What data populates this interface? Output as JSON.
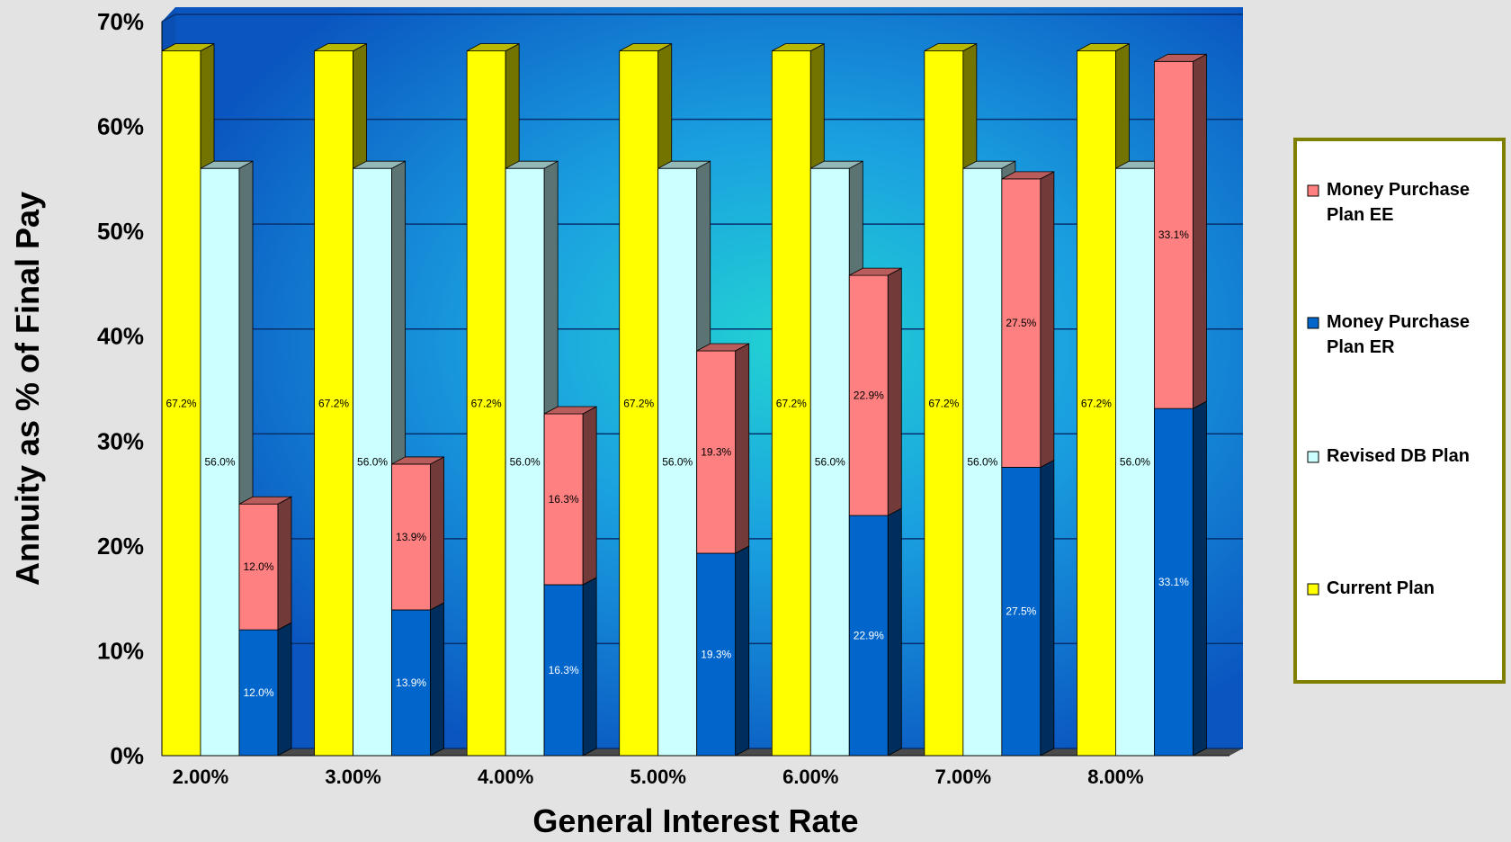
{
  "chart_data": {
    "type": "bar",
    "style": "3d-grouped-stacked",
    "title": "",
    "xlabel": "General Interest Rate",
    "ylabel": "Annuity as % of Final Pay",
    "ylim": [
      0,
      70
    ],
    "yticks": [
      "0%",
      "10%",
      "20%",
      "30%",
      "40%",
      "50%",
      "60%",
      "70%"
    ],
    "categories": [
      "2.00%",
      "3.00%",
      "4.00%",
      "5.00%",
      "6.00%",
      "7.00%",
      "8.00%"
    ],
    "grid": true,
    "legend_position": "right",
    "series": [
      {
        "name": "Current Plan",
        "color": "#ffff00",
        "stack": "current",
        "values": [
          67.2,
          67.2,
          67.2,
          67.2,
          67.2,
          67.2,
          67.2
        ],
        "labels": [
          "67.2%",
          "67.2%",
          "67.2%",
          "67.2%",
          "67.2%",
          "67.2%",
          "67.2%"
        ]
      },
      {
        "name": "Revised DB Plan",
        "color": "#ccffff",
        "stack": "revised",
        "values": [
          56.0,
          56.0,
          56.0,
          56.0,
          56.0,
          56.0,
          56.0
        ],
        "labels": [
          "56.0%",
          "56.0%",
          "56.0%",
          "56.0%",
          "56.0%",
          "56.0%",
          "56.0%"
        ]
      },
      {
        "name": "Money Purchase Plan ER",
        "color": "#0066cc",
        "stack": "money",
        "values": [
          12.0,
          13.9,
          16.3,
          19.3,
          22.9,
          27.5,
          33.1
        ],
        "labels": [
          "12.0%",
          "13.9%",
          "16.3%",
          "19.3%",
          "22.9%",
          "27.5%",
          "33.1%"
        ]
      },
      {
        "name": "Money Purchase Plan EE",
        "color": "#ff8080",
        "stack": "money",
        "values": [
          12.0,
          13.9,
          16.3,
          19.3,
          22.9,
          27.5,
          33.1
        ],
        "labels": [
          "12.0%",
          "13.9%",
          "16.3%",
          "19.3%",
          "22.9%",
          "27.5%",
          "33.1%"
        ]
      }
    ],
    "legend": [
      {
        "label_lines": [
          "Money Purchase",
          "Plan EE"
        ],
        "color": "#ff8080"
      },
      {
        "label_lines": [
          "Money Purchase",
          "Plan ER"
        ],
        "color": "#0066cc"
      },
      {
        "label_lines": [
          "Revised DB Plan"
        ],
        "color": "#ccffff"
      },
      {
        "label_lines": [
          "Current Plan"
        ],
        "color": "#ffff00"
      }
    ]
  }
}
